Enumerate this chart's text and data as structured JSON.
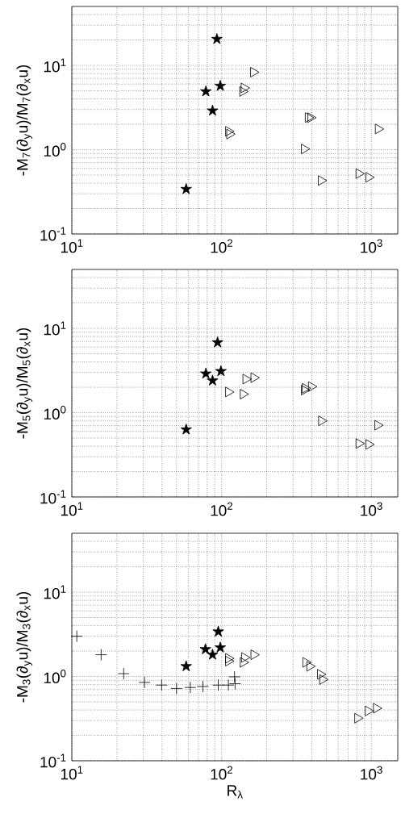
{
  "chart_data": [
    {
      "type": "scatter",
      "ylabel": "-M$_{7}$(∂$_{y}$u)/M$_{7}$(∂$_{x}$u)",
      "log": "xy",
      "grid": true,
      "xlim": [
        10,
        1500
      ],
      "ylim": [
        0.1,
        50
      ],
      "xticks": [
        {
          "value": 10,
          "label": "10$^{1}$"
        },
        {
          "value": 100,
          "label": "10$^{2}$"
        },
        {
          "value": 1000,
          "label": "10$^{3}$"
        }
      ],
      "yticks": [
        {
          "value": 0.1,
          "label": "10$^{-1}$"
        },
        {
          "value": 1,
          "label": "10$^{0}$"
        },
        {
          "value": 10,
          "label": "10$^{1}$"
        }
      ],
      "series": [
        {
          "color": "#000000",
          "marker": "star",
          "x": [
            93,
            78.5,
            98,
            87,
            58
          ],
          "values": [
            20.5,
            4.9,
            5.7,
            2.9,
            0.34
          ]
        },
        {
          "color": "#000000",
          "marker": "triangle",
          "x": [
            163,
            141,
            138,
            111,
            113,
            393,
            378,
            356,
            1110,
            462,
            824,
            959
          ],
          "values": [
            8.3,
            5.4,
            4.9,
            1.65,
            1.53,
            2.4,
            2.4,
            1.02,
            1.76,
            0.43,
            0.52,
            0.47
          ]
        }
      ]
    },
    {
      "type": "scatter",
      "ylabel": "-M$_{5}$(∂$_{y}$u)/M$_{5}$(∂$_{x}$u)",
      "log": "xy",
      "grid": true,
      "xlim": [
        10,
        1500
      ],
      "ylim": [
        0.1,
        50
      ],
      "xticks": [
        {
          "value": 10,
          "label": "10$^{1}$"
        },
        {
          "value": 100,
          "label": "10$^{2}$"
        },
        {
          "value": 1000,
          "label": "10$^{3}$"
        }
      ],
      "yticks": [
        {
          "value": 0.1,
          "label": "10$^{-1}$"
        },
        {
          "value": 1,
          "label": "10$^{0}$"
        },
        {
          "value": 10,
          "label": "10$^{1}$"
        }
      ],
      "series": [
        {
          "color": "#000000",
          "marker": "star",
          "x": [
            94,
            78.5,
            99,
            87,
            58
          ],
          "values": [
            6.8,
            2.9,
            3.1,
            2.4,
            0.63
          ]
        },
        {
          "color": "#000000",
          "marker": "triangle",
          "x": [
            164,
            145,
            111,
            139,
            397,
            361,
            356,
            464,
            1100,
            824,
            959
          ],
          "values": [
            2.6,
            2.5,
            1.76,
            1.66,
            2.04,
            1.95,
            1.85,
            0.8,
            0.71,
            0.43,
            0.42
          ]
        }
      ]
    },
    {
      "type": "scatter",
      "xlabel": "R$_{λ}$",
      "ylabel": "-M$_{3}$(∂$_{y}$u)/M$_{3}$(∂$_{x}$u)",
      "log": "xy",
      "grid": true,
      "xlim": [
        10,
        1500
      ],
      "ylim": [
        0.1,
        50
      ],
      "xticks": [
        {
          "value": 10,
          "label": "10$^{1}$"
        },
        {
          "value": 100,
          "label": "10$^{2}$"
        },
        {
          "value": 1000,
          "label": "10$^{3}$"
        }
      ],
      "yticks": [
        {
          "value": 0.1,
          "label": "10$^{-1}$"
        },
        {
          "value": 1,
          "label": "10$^{0}$"
        },
        {
          "value": 10,
          "label": "10$^{1}$"
        }
      ],
      "series": [
        {
          "color": "#000000",
          "marker": "cross",
          "x": [
            10.8,
            15.7,
            22.2,
            30.6,
            39.8,
            50,
            61.8,
            75,
            95,
            111,
            123,
            122
          ],
          "values": [
            3.0,
            1.81,
            1.08,
            0.85,
            0.79,
            0.72,
            0.74,
            0.76,
            0.79,
            0.79,
            0.82,
            0.99
          ]
        },
        {
          "color": "#000000",
          "marker": "star",
          "x": [
            95,
            78,
            98,
            87,
            58
          ],
          "values": [
            3.4,
            2.1,
            2.2,
            1.81,
            1.32
          ]
        },
        {
          "color": "#000000",
          "marker": "triangle",
          "x": [
            164,
            142,
            111,
            139,
            111,
            364,
            387,
            456,
            471,
            808,
            950,
            1077
          ],
          "values": [
            1.81,
            1.68,
            1.64,
            1.47,
            1.52,
            1.47,
            1.32,
            1.06,
            0.92,
            0.32,
            0.39,
            0.42
          ]
        }
      ]
    }
  ]
}
